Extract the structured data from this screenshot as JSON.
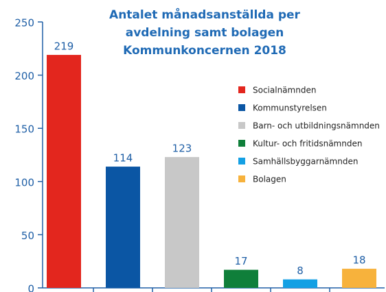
{
  "chart_data": {
    "type": "bar",
    "title": [
      "Antalet månadsanställda per",
      "avdelning samt bolagen",
      "Kommunkoncernen 2018"
    ],
    "categories": [
      "Socialnämnden",
      "Kommunstyrelsen",
      "Barn- och utbildningsnämnden",
      "Kultur- och fritidsnämnden",
      "Samhällsbyggarnämnden",
      "Bolagen"
    ],
    "values": [
      219,
      114,
      123,
      17,
      8,
      18
    ],
    "colors": [
      "#e3261e",
      "#0b56a4",
      "#c8c8c8",
      "#0f7f3a",
      "#14a0e4",
      "#f7b23c"
    ],
    "ylim": [
      0,
      250
    ],
    "yticks": [
      0,
      50,
      100,
      150,
      200,
      250
    ],
    "legend": "upper right"
  }
}
